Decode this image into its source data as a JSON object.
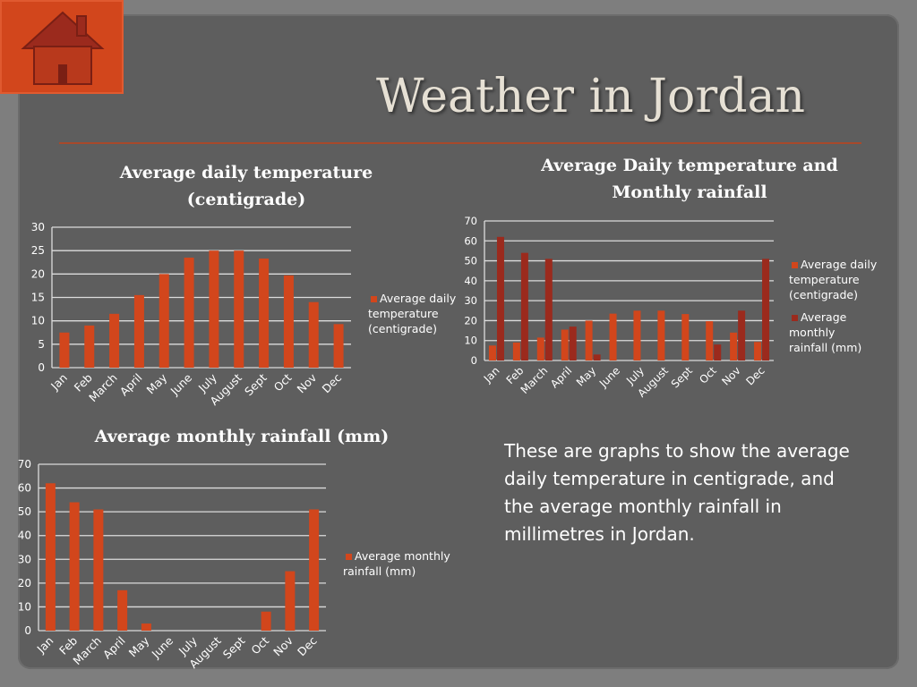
{
  "slide": {
    "title": "Weather in Jordan",
    "description": "These are graphs to show the average daily temperature in centigrade, and the average monthly rainfall in millimetres in Jordan."
  },
  "colors": {
    "temperature": "#d2461c",
    "rainfall_combined": "#9b2a1d",
    "background": "#5e5e5e"
  },
  "icons": [
    "house-icon"
  ],
  "chart_data": [
    {
      "type": "bar",
      "title": "Average daily temperature (centigrade)",
      "categories": [
        "Jan",
        "Feb",
        "March",
        "April",
        "May",
        "June",
        "July",
        "August",
        "Sept",
        "Oct",
        "Nov",
        "Dec"
      ],
      "series": [
        {
          "name": "Average daily temperature (centigrade)",
          "values": [
            7.5,
            9,
            11.5,
            15.5,
            20,
            23.5,
            25,
            25,
            23.3,
            19.7,
            14,
            9.3
          ]
        }
      ],
      "yticks": [
        "0",
        "5",
        "10",
        "15",
        "20",
        "25",
        "30"
      ],
      "ylim": [
        0,
        30
      ],
      "grid": true,
      "legend": "right"
    },
    {
      "type": "bar",
      "title": "Average Daily temperature and Monthly rainfall",
      "categories": [
        "Jan",
        "Feb",
        "March",
        "April",
        "May",
        "June",
        "July",
        "August",
        "Sept",
        "Oct",
        "Nov",
        "Dec"
      ],
      "series": [
        {
          "name": "Average daily temperature (centigrade)",
          "values": [
            7.5,
            9,
            11.5,
            15.5,
            20,
            23.5,
            25,
            25,
            23.3,
            19.7,
            14,
            9.3
          ]
        },
        {
          "name": "Average monthly rainfall (mm)",
          "values": [
            62,
            54,
            51,
            17,
            3,
            0,
            0,
            0,
            0,
            8,
            25,
            51
          ]
        }
      ],
      "yticks": [
        "0",
        "10",
        "20",
        "30",
        "40",
        "50",
        "60",
        "70"
      ],
      "ylim": [
        0,
        70
      ],
      "grid": true,
      "legend": "right"
    },
    {
      "type": "bar",
      "title": "Average monthly rainfall (mm)",
      "categories": [
        "Jan",
        "Feb",
        "March",
        "April",
        "May",
        "June",
        "July",
        "August",
        "Sept",
        "Oct",
        "Nov",
        "Dec"
      ],
      "series": [
        {
          "name": "Average monthly rainfall (mm)",
          "values": [
            62,
            54,
            51,
            17,
            3,
            0,
            0,
            0,
            0,
            8,
            25,
            51
          ]
        }
      ],
      "yticks": [
        "0",
        "10",
        "20",
        "30",
        "40",
        "50",
        "60",
        "70"
      ],
      "ylim": [
        0,
        70
      ],
      "grid": true,
      "legend": "right"
    }
  ]
}
